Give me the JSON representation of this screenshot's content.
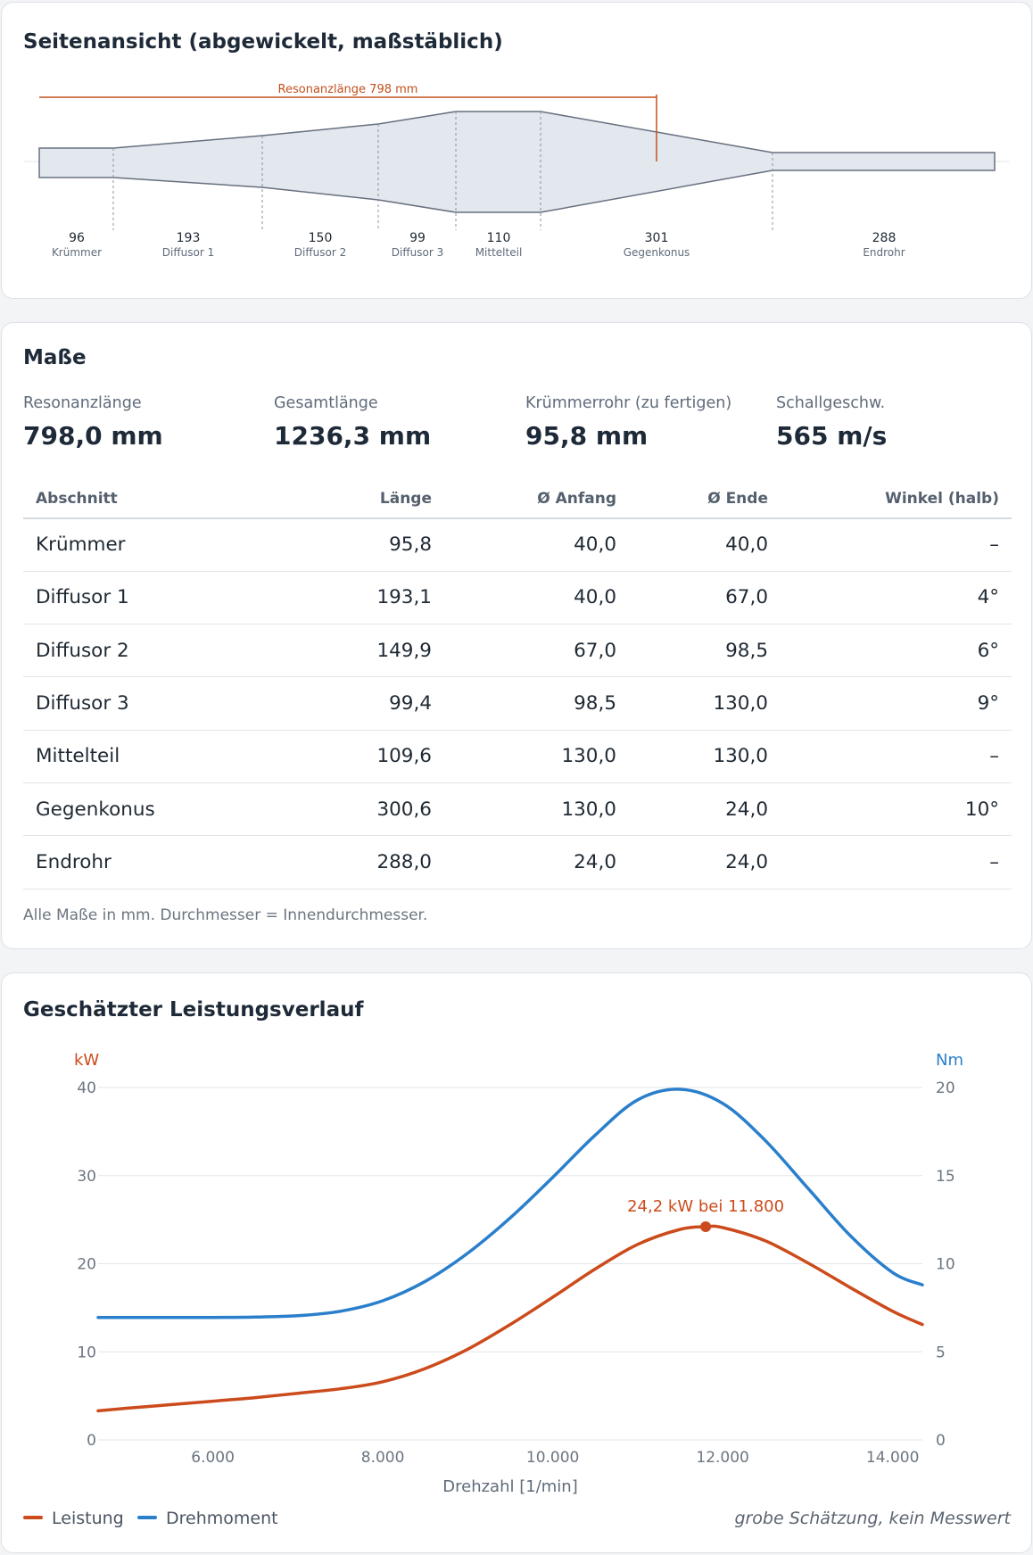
{
  "side_view": {
    "title": "Seitenansicht (abgewickelt, maßstäblich)",
    "resonance_label": "Resonanzlänge 798 mm",
    "sections": [
      {
        "length": "96",
        "name": "Krümmer"
      },
      {
        "length": "193",
        "name": "Diffusor 1"
      },
      {
        "length": "150",
        "name": "Diffusor 2"
      },
      {
        "length": "99",
        "name": "Diffusor 3"
      },
      {
        "length": "110",
        "name": "Mittelteil"
      },
      {
        "length": "301",
        "name": "Gegenkonus"
      },
      {
        "length": "288",
        "name": "Endrohr"
      }
    ],
    "accent_color": "#c2501e"
  },
  "dimensions": {
    "title": "Maße",
    "stats": [
      {
        "label": "Resonanzlänge",
        "value": "798,0 mm"
      },
      {
        "label": "Gesamtlänge",
        "value": "1236,3 mm"
      },
      {
        "label": "Krümmerrohr (zu fertigen)",
        "value": "95,8 mm"
      },
      {
        "label": "Schallgeschw.",
        "value": "565 m/s"
      }
    ],
    "table": {
      "headers": [
        "Abschnitt",
        "Länge",
        "Ø Anfang",
        "Ø Ende",
        "Winkel (halb)"
      ],
      "rows": [
        [
          "Krümmer",
          "95,8",
          "40,0",
          "40,0",
          "–"
        ],
        [
          "Diffusor 1",
          "193,1",
          "40,0",
          "67,0",
          "4°"
        ],
        [
          "Diffusor 2",
          "149,9",
          "67,0",
          "98,5",
          "6°"
        ],
        [
          "Diffusor 3",
          "99,4",
          "98,5",
          "130,0",
          "9°"
        ],
        [
          "Mittelteil",
          "109,6",
          "130,0",
          "130,0",
          "–"
        ],
        [
          "Gegenkonus",
          "300,6",
          "130,0",
          "24,0",
          "10°"
        ],
        [
          "Endrohr",
          "288,0",
          "24,0",
          "24,0",
          "–"
        ]
      ]
    },
    "footnote": "Alle Maße in mm. Durchmesser = Innendurchmesser."
  },
  "performance": {
    "title": "Geschätzter Leistungsverlauf",
    "legend_power": "Leistung",
    "legend_torque": "Drehmoment",
    "disclaimer": "grobe Schätzung, kein Messwert",
    "peak_label": "24,2 kW bei 11.800"
  },
  "chart_data": {
    "type": "line",
    "xlabel": "Drehzahl [1/min]",
    "ylabel": "kW",
    "y2label": "Nm",
    "xlim": [
      4650,
      14350
    ],
    "ylim": [
      0,
      40
    ],
    "y2lim": [
      0,
      20
    ],
    "x_ticks": [
      6000,
      8000,
      10000,
      12000,
      14000
    ],
    "x_tick_labels": [
      "6.000",
      "8.000",
      "10.000",
      "12.000",
      "14.000"
    ],
    "y_ticks": [
      "0",
      "10",
      "20",
      "30",
      "40"
    ],
    "y2_ticks": [
      "0",
      "5",
      "10",
      "15",
      "20"
    ],
    "grid": true,
    "legend_position": "bottom-left",
    "peak": {
      "x": 11800,
      "y": 24.2
    },
    "series": [
      {
        "name": "Leistung",
        "axis": "left",
        "color": "#cc4b1c",
        "x": [
          4650,
          5000,
          5500,
          6000,
          6500,
          7000,
          7500,
          8000,
          8500,
          9000,
          9500,
          10000,
          10500,
          11000,
          11500,
          11800,
          12000,
          12500,
          13000,
          13500,
          14000,
          14350
        ],
        "y": [
          3.3,
          3.6,
          4.0,
          4.4,
          4.8,
          5.3,
          5.8,
          6.6,
          8.1,
          10.3,
          13.1,
          16.2,
          19.4,
          22.2,
          23.9,
          24.2,
          24.1,
          22.6,
          20.1,
          17.3,
          14.6,
          13.1
        ]
      },
      {
        "name": "Drehmoment",
        "axis": "right",
        "color": "#2a7fcc",
        "x": [
          4650,
          5000,
          5500,
          6000,
          6500,
          7000,
          7500,
          8000,
          8500,
          9000,
          9500,
          10000,
          10500,
          11000,
          11500,
          12000,
          12500,
          13000,
          13500,
          14000,
          14350
        ],
        "y": [
          6.95,
          6.95,
          6.95,
          6.95,
          6.97,
          7.05,
          7.3,
          7.9,
          9.0,
          10.6,
          12.6,
          14.9,
          17.3,
          19.3,
          19.9,
          19.1,
          17.0,
          14.3,
          11.6,
          9.5,
          8.8
        ]
      }
    ]
  }
}
